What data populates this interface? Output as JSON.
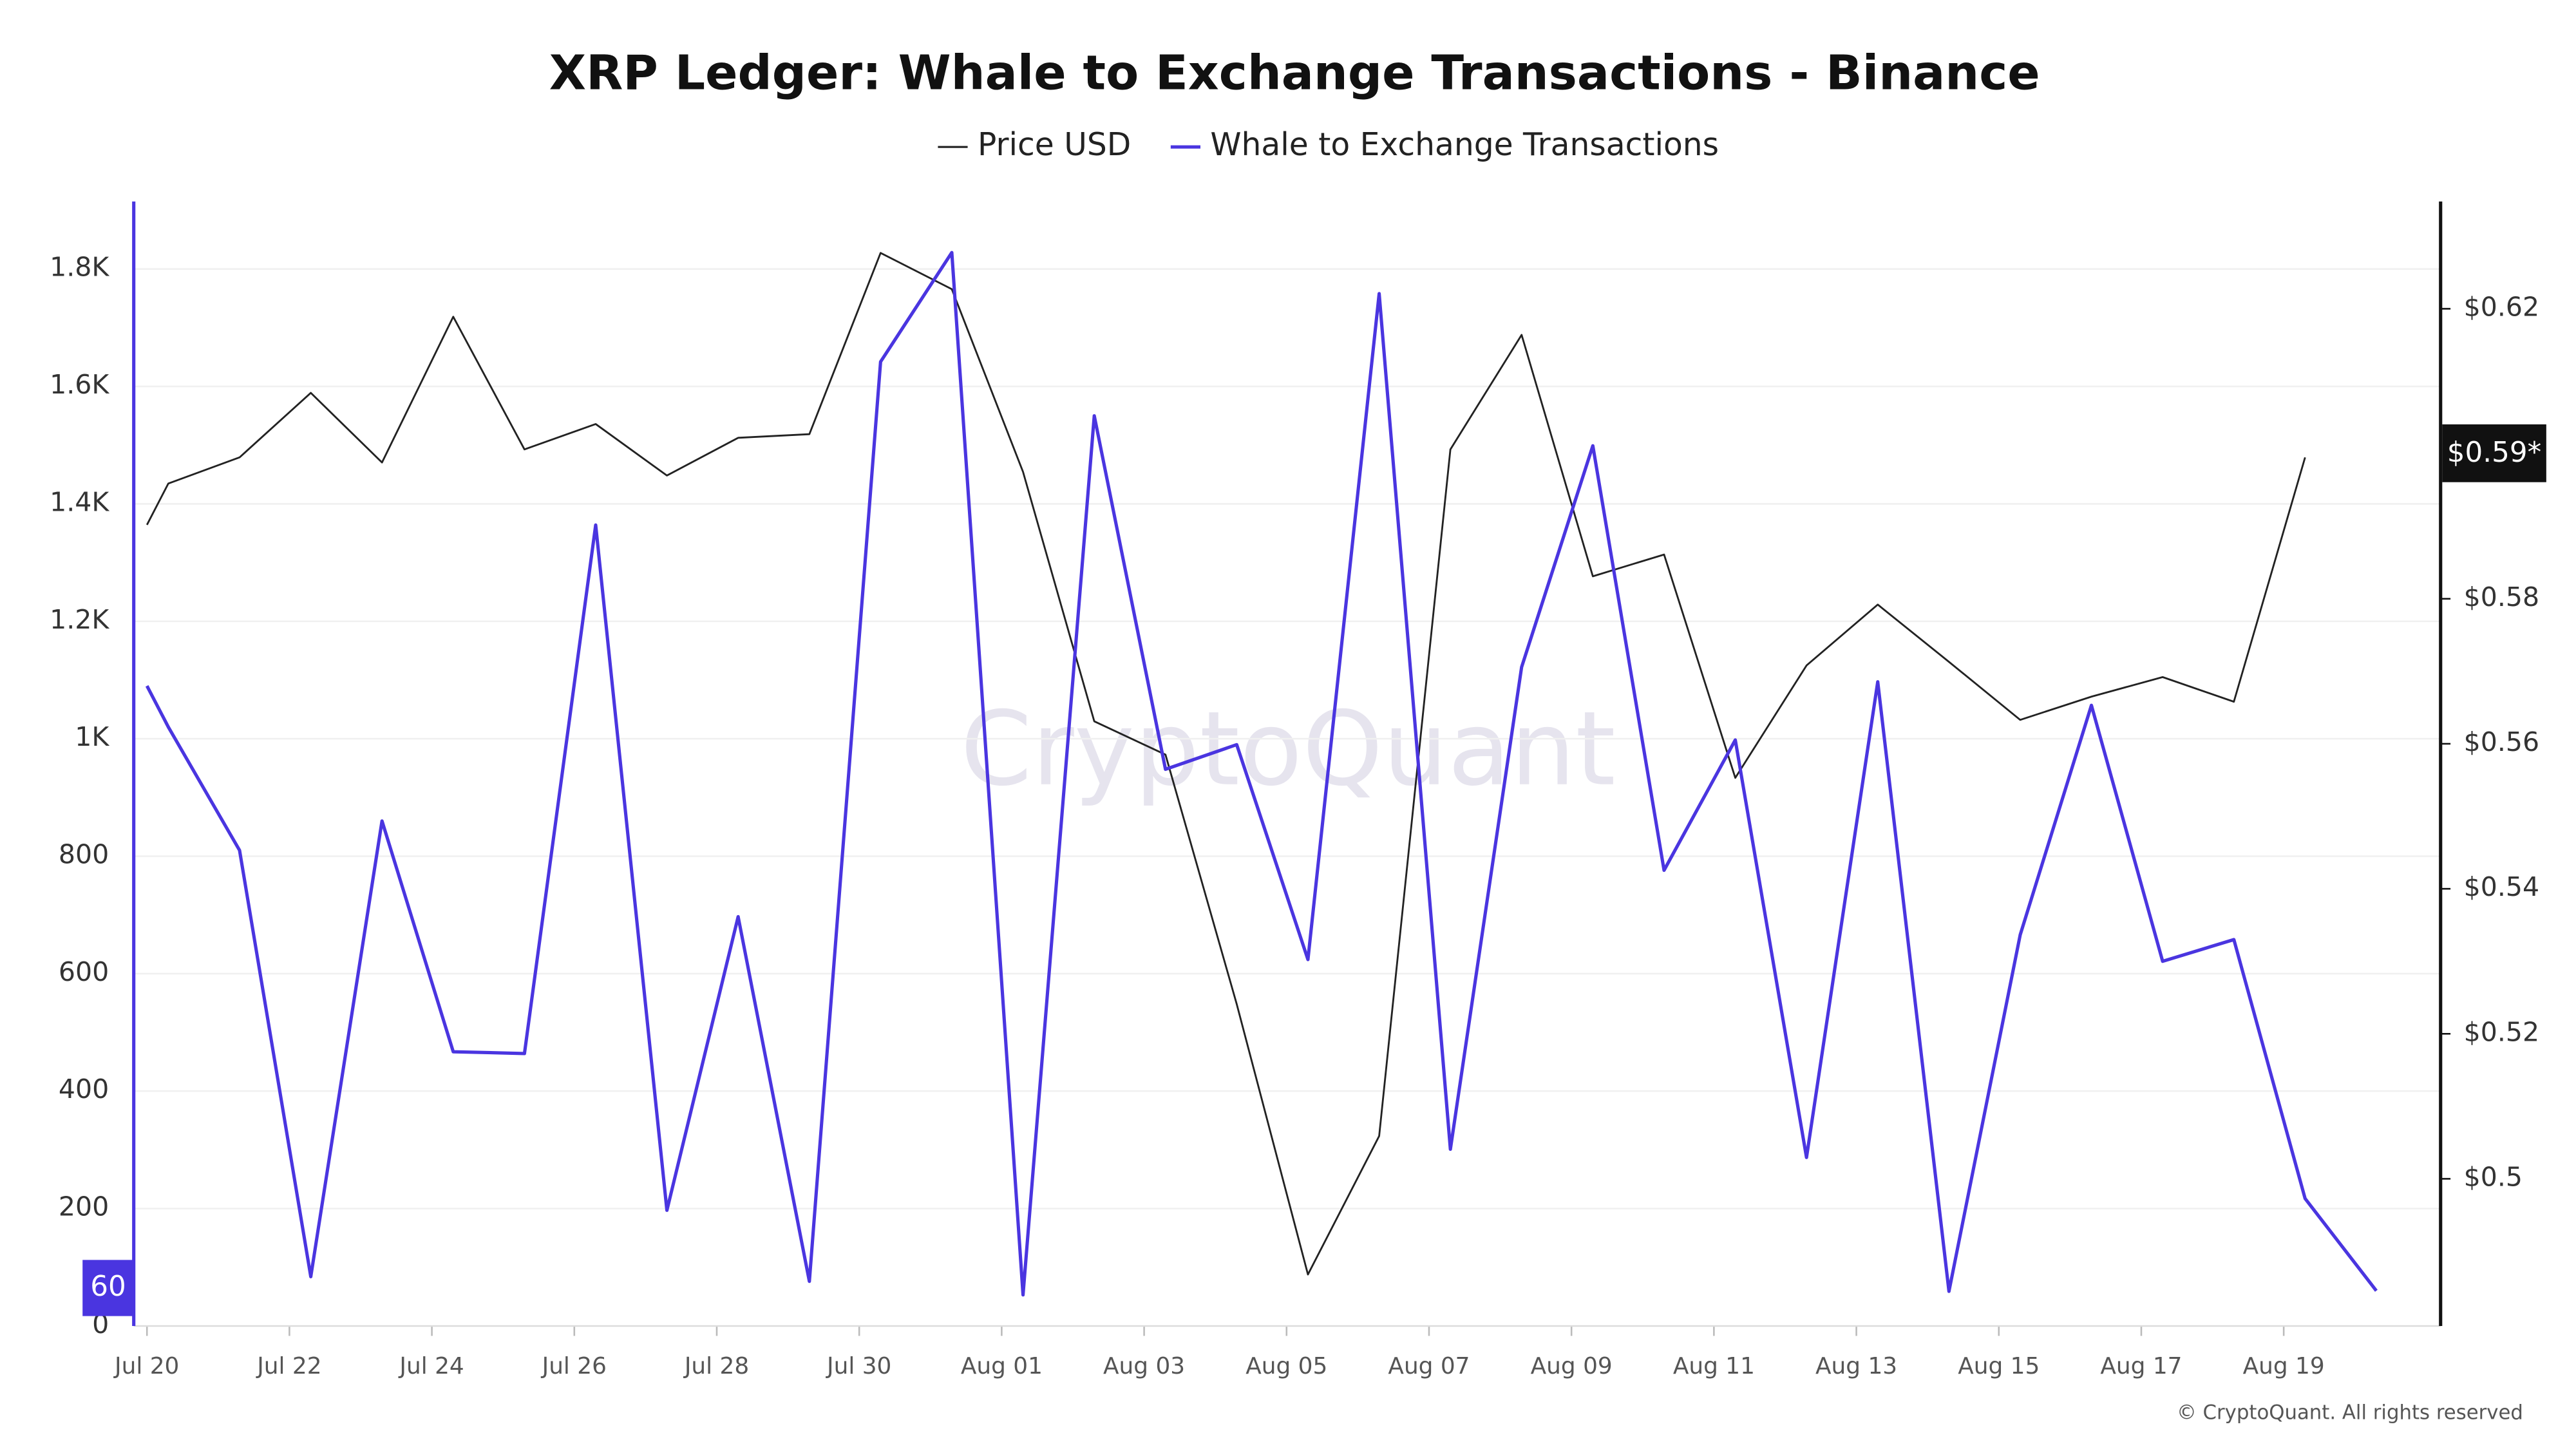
{
  "chart_data": {
    "type": "line",
    "title": "XRP Ledger: Whale to Exchange Transactions - Binance",
    "watermark": "CryptoQuant",
    "copyright": "© CryptoQuant. All rights reserved",
    "price_badge": "$0.59*",
    "x": [
      0,
      0.3,
      1.3,
      2.3,
      3.3,
      4.3,
      5.3,
      6.3,
      7.3,
      8.3,
      9.3,
      10.3,
      11.3,
      12.3,
      13.3,
      14.3,
      15.3,
      16.3,
      17.3,
      18.3,
      19.3,
      20.3,
      21.3,
      22.3,
      23.3,
      24.3,
      25.3,
      26.3,
      27.3,
      28.3,
      29.3,
      30.3,
      31.3
    ],
    "xlim": [
      -0.1,
      32.5
    ],
    "xticks": [
      {
        "value": 0,
        "label": "Jul 20"
      },
      {
        "value": 2,
        "label": "Jul 22"
      },
      {
        "value": 4,
        "label": "Jul 24"
      },
      {
        "value": 6,
        "label": "Jul 26"
      },
      {
        "value": 8,
        "label": "Jul 28"
      },
      {
        "value": 10,
        "label": "Jul 30"
      },
      {
        "value": 12,
        "label": "Aug 01"
      },
      {
        "value": 14,
        "label": "Aug 03"
      },
      {
        "value": 16,
        "label": "Aug 05"
      },
      {
        "value": 18,
        "label": "Aug 07"
      },
      {
        "value": 20,
        "label": "Aug 09"
      },
      {
        "value": 22,
        "label": "Aug 11"
      },
      {
        "value": 24,
        "label": "Aug 13"
      },
      {
        "value": 26,
        "label": "Aug 15"
      },
      {
        "value": 28,
        "label": "Aug 17"
      },
      {
        "value": 30,
        "label": "Aug 19"
      }
    ],
    "ylim": [
      0,
      1915
    ],
    "yticks": [
      0,
      200,
      400,
      600,
      800,
      {
        "value": 1000,
        "label": "1K"
      },
      {
        "value": 1200,
        "label": "1.2K"
      },
      {
        "value": 1400,
        "label": "1.4K"
      },
      {
        "value": 1600,
        "label": "1.6K"
      },
      {
        "value": 1800,
        "label": "1.8K"
      }
    ],
    "y2lim": [
      0.4797,
      0.6348
    ],
    "y2ticks": [
      {
        "value": 0.5,
        "label": "$0.5"
      },
      {
        "value": 0.52,
        "label": "$0.52"
      },
      {
        "value": 0.54,
        "label": "$0.54"
      },
      {
        "value": 0.56,
        "label": "$0.56"
      },
      {
        "value": 0.58,
        "label": "$0.58"
      },
      {
        "value": 0.62,
        "label": "$0.62"
      }
    ],
    "grid": true,
    "series": [
      {
        "name": "Price USD",
        "color": "#222222",
        "axis": "y2",
        "values": [
          0.5902,
          0.5959,
          0.5995,
          0.6084,
          0.5988,
          0.6189,
          0.6006,
          0.6041,
          0.597,
          0.6022,
          0.6027,
          0.6277,
          0.6227,
          0.5975,
          0.5631,
          0.5585,
          0.5241,
          0.4868,
          0.5059,
          0.6006,
          0.6164,
          0.5831,
          0.5861,
          0.5553,
          0.5708,
          0.5792,
          0.5713,
          0.5633,
          0.5665,
          0.5692,
          0.5658,
          0.5995,
          null
        ]
      },
      {
        "name": "Whale to Exchange Transactions",
        "color": "#4a35e0",
        "values": [
          1090,
          1020,
          810,
          84,
          860,
          467,
          464,
          1364,
          197,
          697,
          76,
          1642,
          1828,
          53,
          1550,
          948,
          990,
          624,
          1758,
          301,
          1122,
          1499,
          776,
          998,
          287,
          1097,
          59,
          666,
          1057,
          621,
          658,
          217,
          60
        ]
      }
    ]
  }
}
